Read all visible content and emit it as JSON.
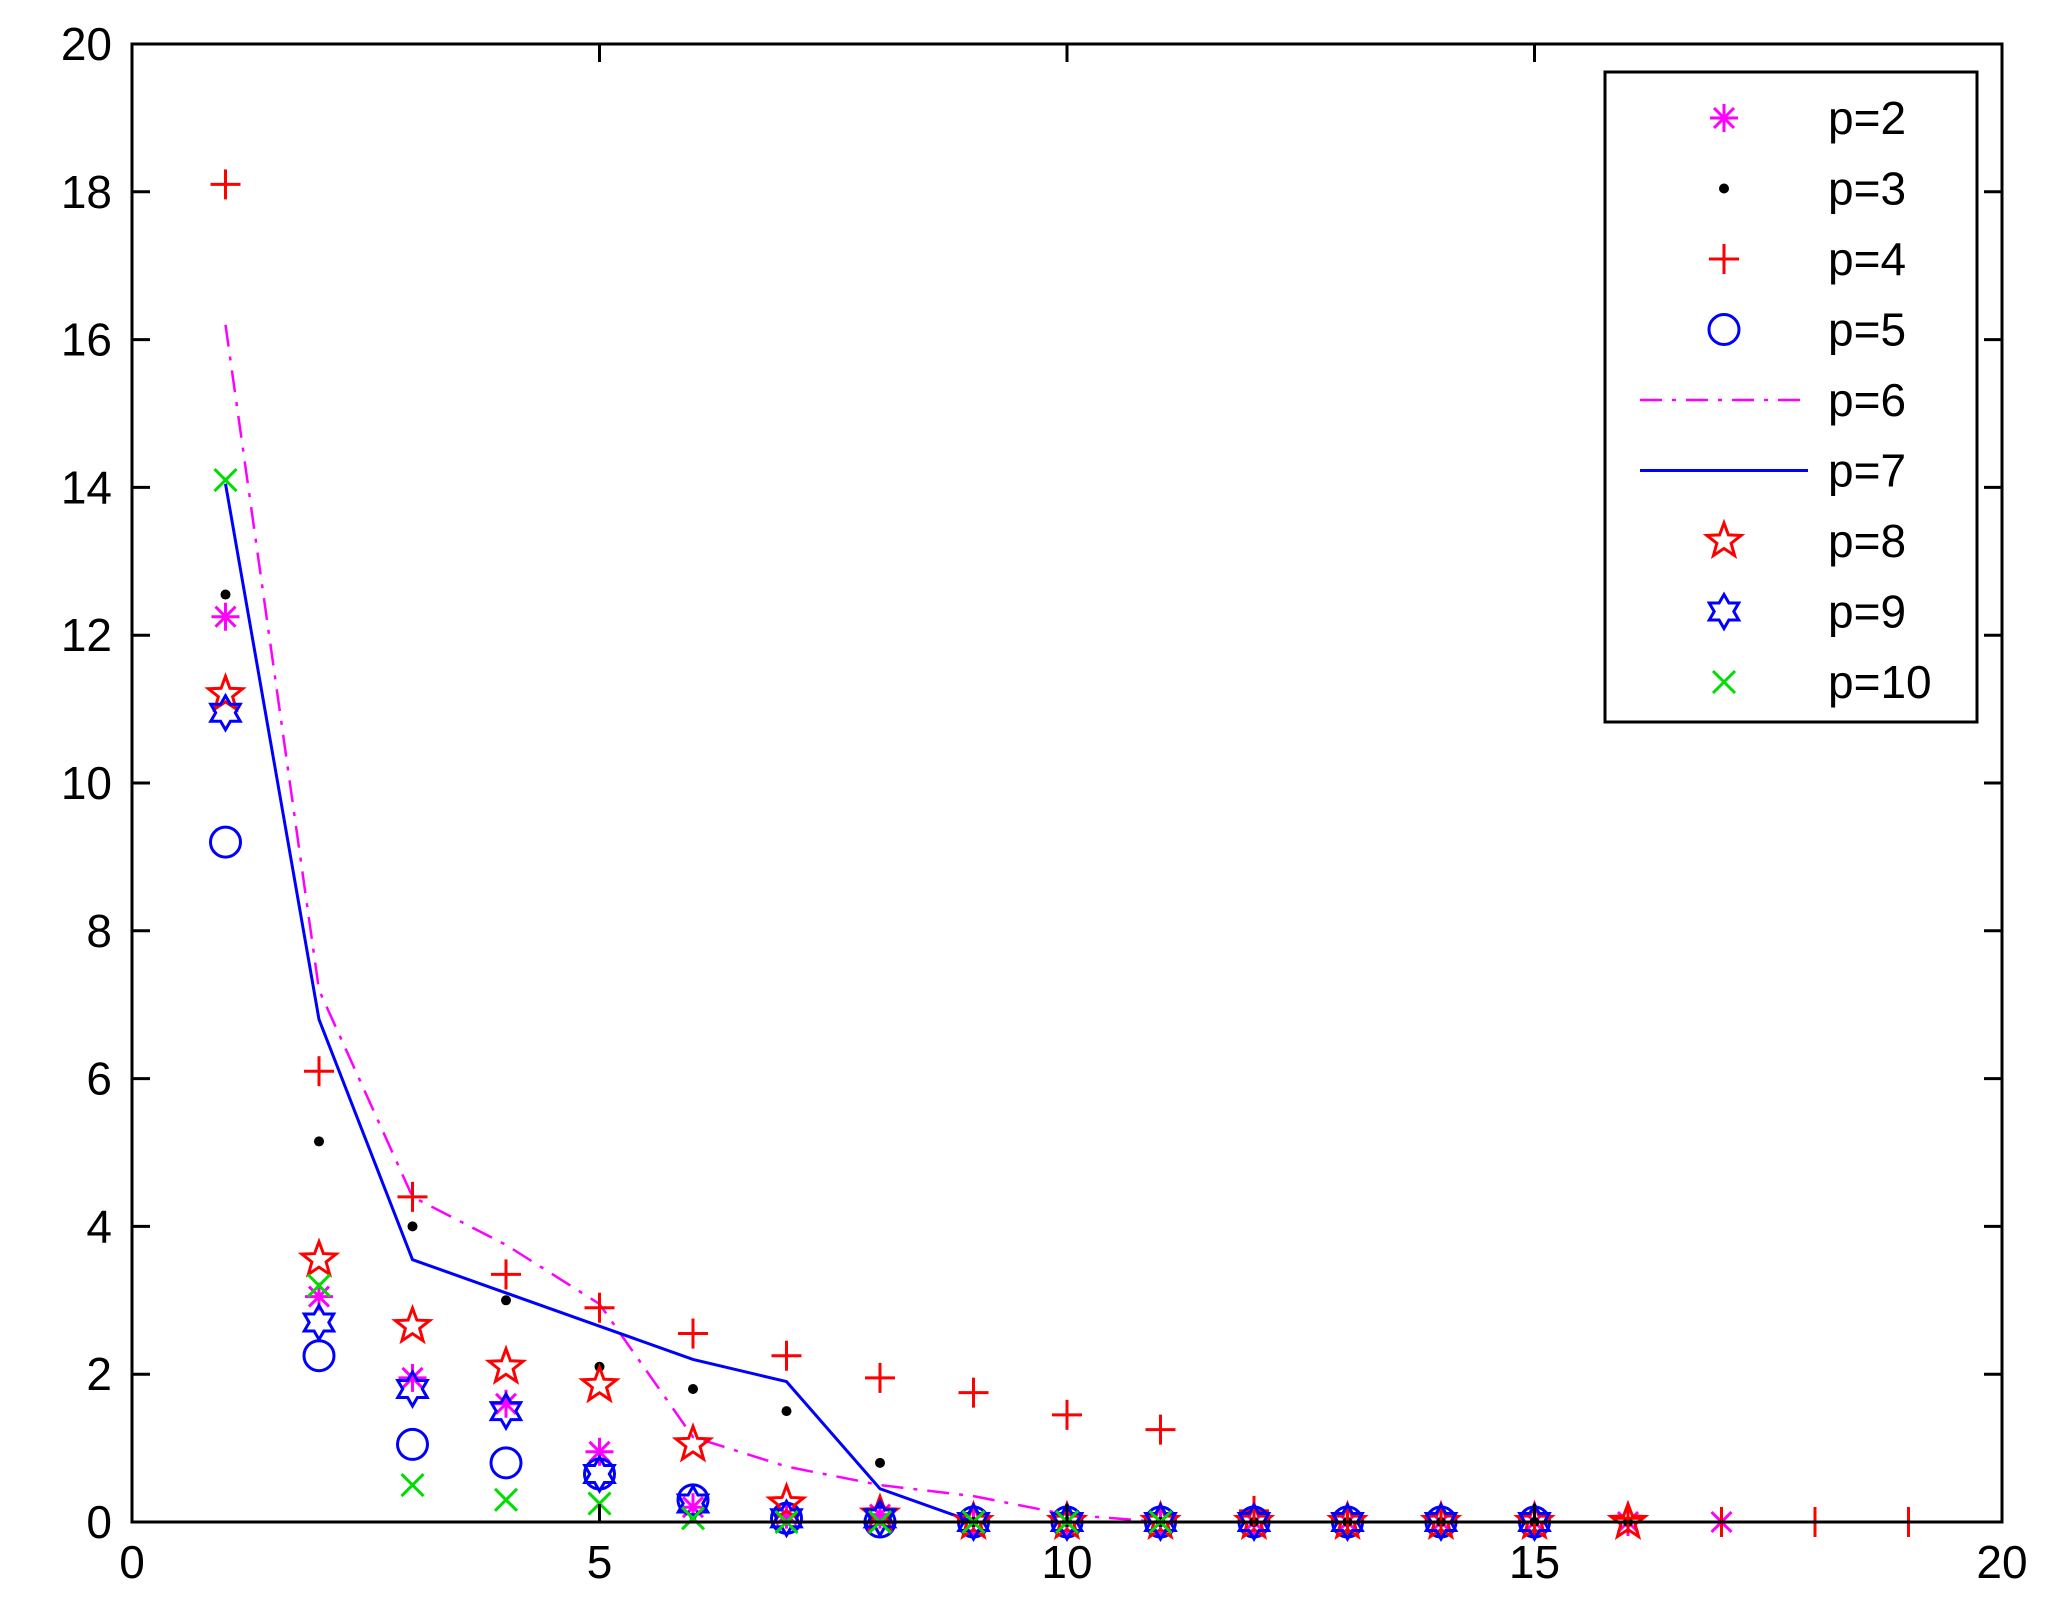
{
  "chart_data": {
    "type": "scatter",
    "title": "",
    "xlabel": "",
    "ylabel": "",
    "xlim": [
      0,
      20
    ],
    "ylim": [
      0,
      20
    ],
    "xticks": [
      0,
      5,
      10,
      15,
      20
    ],
    "yticks": [
      0,
      2,
      4,
      6,
      8,
      10,
      12,
      14,
      16,
      18,
      20
    ],
    "xtick_labels": [
      "0",
      "5",
      "10",
      "15",
      "20"
    ],
    "ytick_labels": [
      "0",
      "2",
      "4",
      "6",
      "8",
      "10",
      "12",
      "14",
      "16",
      "18",
      "20"
    ],
    "grid": false,
    "legend_position": "top-right",
    "series": [
      {
        "name": "p=2",
        "style": "asterisk",
        "color": "#ff00ff",
        "x": [
          1,
          2,
          3,
          4,
          5,
          6,
          7,
          8,
          9,
          10,
          11,
          12,
          13,
          14,
          15,
          16,
          17
        ],
        "y": [
          12.25,
          3.05,
          1.95,
          1.6,
          0.95,
          0.2,
          0.1,
          0.1,
          0,
          0,
          0,
          0,
          0,
          0,
          0,
          0,
          0
        ]
      },
      {
        "name": "p=3",
        "style": "dot",
        "color": "#000000",
        "x": [
          1,
          2,
          3,
          4,
          5,
          6,
          7,
          8,
          9,
          10,
          11,
          12,
          13,
          14,
          15,
          16
        ],
        "y": [
          12.55,
          5.15,
          4.0,
          3.0,
          2.1,
          1.8,
          1.5,
          0.8,
          0,
          0,
          0,
          0,
          0,
          0,
          0,
          0
        ]
      },
      {
        "name": "p=4",
        "style": "plus",
        "color": "#ff0000",
        "x": [
          1,
          2,
          3,
          4,
          5,
          6,
          7,
          8,
          9,
          10,
          11,
          12,
          13,
          14,
          15,
          16,
          17,
          18,
          19
        ],
        "y": [
          18.1,
          6.1,
          4.4,
          3.35,
          2.9,
          2.55,
          2.25,
          1.95,
          1.75,
          1.45,
          1.25,
          0.15,
          0,
          0,
          0,
          0.05,
          0,
          0,
          0
        ]
      },
      {
        "name": "p=5",
        "style": "circle",
        "color": "#0000ff",
        "x": [
          1,
          2,
          3,
          4,
          5,
          6,
          7,
          8,
          9,
          10,
          11,
          12,
          13,
          14,
          15
        ],
        "y": [
          9.2,
          2.25,
          1.05,
          0.8,
          0.65,
          0.3,
          0.05,
          0,
          0,
          0,
          0,
          0,
          0,
          0,
          0
        ]
      },
      {
        "name": "p=6",
        "style": "dashdot",
        "color": "#ff00ff",
        "x": [
          1,
          2,
          3,
          4,
          5,
          6,
          7,
          8,
          9,
          10,
          11,
          12,
          13,
          14,
          15,
          16
        ],
        "y": [
          16.2,
          7.2,
          4.4,
          3.75,
          2.95,
          1.15,
          0.75,
          0.5,
          0.35,
          0.1,
          0,
          0,
          0,
          0,
          0,
          0
        ]
      },
      {
        "name": "p=7",
        "style": "solid",
        "color": "#0000ff",
        "x": [
          1,
          2,
          3,
          4,
          5,
          6,
          7,
          8,
          9,
          10,
          11,
          12,
          13,
          14,
          15,
          16
        ],
        "y": [
          14.05,
          6.8,
          3.55,
          3.1,
          2.65,
          2.2,
          1.9,
          0.45,
          0,
          0,
          0,
          0,
          0,
          0,
          0,
          0
        ]
      },
      {
        "name": "p=8",
        "style": "pentagram",
        "color": "#ff0000",
        "x": [
          1,
          2,
          3,
          4,
          5,
          6,
          7,
          8,
          9,
          10,
          11,
          12,
          13,
          14,
          15,
          16
        ],
        "y": [
          11.2,
          3.55,
          2.65,
          2.1,
          1.85,
          1.05,
          0.25,
          0.1,
          0,
          0,
          0,
          0,
          0,
          0,
          0,
          0
        ]
      },
      {
        "name": "p=9",
        "style": "hexagram",
        "color": "#0000ff",
        "x": [
          1,
          2,
          3,
          4,
          5,
          6,
          7,
          8,
          9,
          10,
          11,
          12,
          13,
          14,
          15
        ],
        "y": [
          10.95,
          2.7,
          1.8,
          1.5,
          0.65,
          0.25,
          0.05,
          0.05,
          0,
          0,
          0,
          0,
          0,
          0,
          0
        ]
      },
      {
        "name": "p=10",
        "style": "cross",
        "color": "#00dd00",
        "x": [
          1,
          2,
          3,
          4,
          5,
          6,
          7,
          8,
          9,
          10,
          11
        ],
        "y": [
          14.1,
          3.2,
          0.5,
          0.3,
          0.25,
          0.05,
          0,
          0,
          0,
          0,
          0
        ]
      }
    ]
  }
}
